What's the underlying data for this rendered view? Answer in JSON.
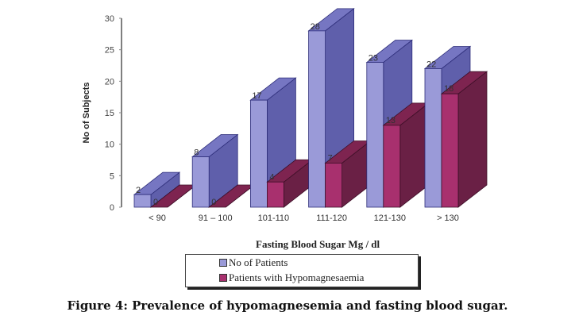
{
  "chart_data": {
    "type": "bar",
    "style": "3d-clustered-column",
    "title": "",
    "xlabel": "Fasting Blood Sugar  Mg / dl",
    "ylabel": "No of Subjects",
    "ylim": [
      0,
      30
    ],
    "yticks": [
      0,
      5,
      10,
      15,
      20,
      25,
      30
    ],
    "grid": false,
    "legend_position": "bottom",
    "categories": [
      "< 90",
      "91 – 100",
      "101-110",
      "111-120",
      "121-130",
      "> 130"
    ],
    "series": [
      {
        "name": "No of  Patients",
        "values": [
          2,
          8,
          17,
          28,
          23,
          22
        ],
        "color": "#9a9ad8",
        "color_top": "#7676c2",
        "color_side": "#5f5fab"
      },
      {
        "name": "Patients with Hypomagnesaemia",
        "values": [
          0,
          0,
          4,
          7,
          13,
          18
        ],
        "color": "#a8306e",
        "color_top": "#7e2450",
        "color_side": "#6a2045"
      }
    ]
  },
  "caption": "Figure 4: Prevalence of hypomagnesemia and fasting blood sugar."
}
